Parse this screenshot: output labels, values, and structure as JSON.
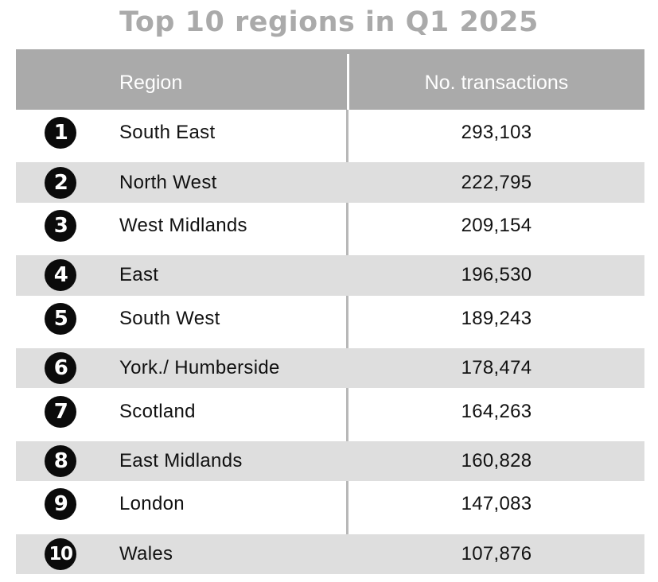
{
  "chart_data": {
    "type": "table",
    "title": "Top 10 regions in Q1 2025",
    "columns": [
      "Region",
      "No. transactions"
    ],
    "rows": [
      {
        "rank": "1",
        "region": "South East",
        "transactions": "293,103",
        "value": 293103
      },
      {
        "rank": "2",
        "region": "North West",
        "transactions": "222,795",
        "value": 222795
      },
      {
        "rank": "3",
        "region": "West Midlands",
        "transactions": "209,154",
        "value": 209154
      },
      {
        "rank": "4",
        "region": "East",
        "transactions": "196,530",
        "value": 196530
      },
      {
        "rank": "5",
        "region": "South West",
        "transactions": "189,243",
        "value": 189243
      },
      {
        "rank": "6",
        "region": "York./ Humberside",
        "transactions": "178,474",
        "value": 178474
      },
      {
        "rank": "7",
        "region": "Scotland",
        "transactions": "164,263",
        "value": 164263
      },
      {
        "rank": "8",
        "region": "East Midlands",
        "transactions": "160,828",
        "value": 160828
      },
      {
        "rank": "9",
        "region": "London",
        "transactions": "147,083",
        "value": 147083
      },
      {
        "rank": "10",
        "region": "Wales",
        "transactions": "107,876",
        "value": 107876
      }
    ]
  },
  "colors": {
    "title": "#aaaaaa",
    "header_bg": "#aaaaaa",
    "header_text": "#ffffff",
    "stripe": "#dedede",
    "badge": "#0b0b0b"
  }
}
